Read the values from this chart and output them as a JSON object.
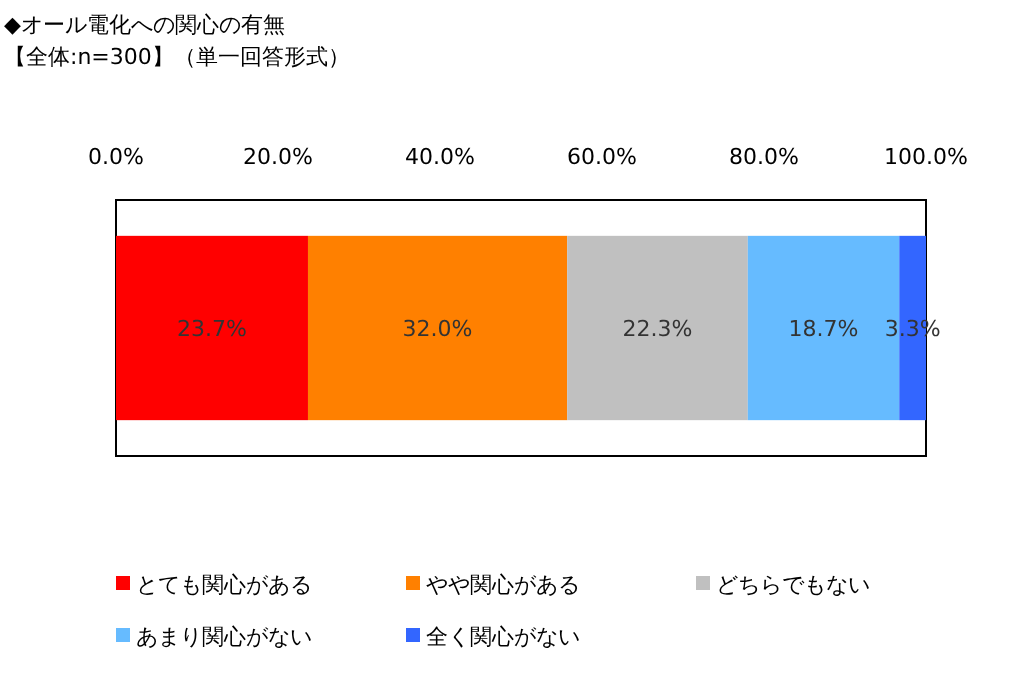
{
  "chart_data": {
    "type": "bar",
    "orientation": "horizontal",
    "stacked": true,
    "title": "◆オール電化への関心の有無",
    "subtitle": "【全体:n=300】（単一回答形式）",
    "categories": [
      null
    ],
    "xlim": [
      0,
      100
    ],
    "xticks": [
      {
        "value": 0,
        "label": "0.0%"
      },
      {
        "value": 20,
        "label": "20.0%"
      },
      {
        "value": 40,
        "label": "40.0%"
      },
      {
        "value": 60,
        "label": "60.0%"
      },
      {
        "value": 80,
        "label": "80.0%"
      },
      {
        "value": 100,
        "label": "100.0%"
      }
    ],
    "legend": "bottom",
    "series": [
      {
        "name": "とても関心がある",
        "color": "#ff0000",
        "values": [
          23.7
        ],
        "value_labels": [
          "23.7%"
        ]
      },
      {
        "name": "やや関心がある",
        "color": "#ff8000",
        "values": [
          32.0
        ],
        "value_labels": [
          "32.0%"
        ]
      },
      {
        "name": "どちらでもない",
        "color": "#c0c0c0",
        "values": [
          22.3
        ],
        "value_labels": [
          "22.3%"
        ]
      },
      {
        "name": "あまり関心がない",
        "color": "#66bbff",
        "values": [
          18.7
        ],
        "value_labels": [
          "18.7%"
        ]
      },
      {
        "name": "全く関心がない",
        "color": "#3366ff",
        "values": [
          3.3
        ],
        "value_labels": [
          "3.3%"
        ]
      }
    ]
  }
}
